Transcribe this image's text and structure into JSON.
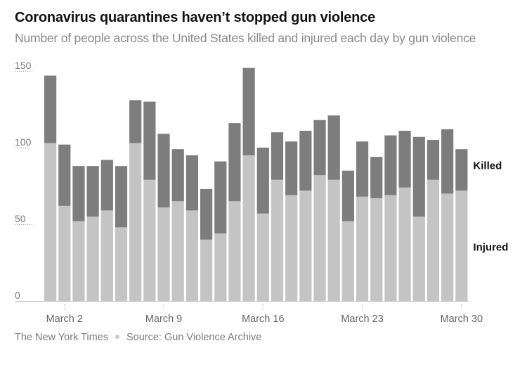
{
  "title": "Coronavirus quarantines haven’t stopped gun violence",
  "subtitle": "Number of people across the United States killed and injured each day by gun violence",
  "footer": {
    "publisher": "The New York Times",
    "source": "Source: Gun Violence Archive"
  },
  "colors": {
    "injured": "#c4c4c4",
    "killed": "#7d7d7d",
    "text": "#121212",
    "muted": "#8a8a8a"
  },
  "chart_data": {
    "type": "bar",
    "stacked": true,
    "categories": [
      "Mar 1",
      "Mar 2",
      "Mar 3",
      "Mar 4",
      "Mar 5",
      "Mar 6",
      "Mar 7",
      "Mar 8",
      "Mar 9",
      "Mar 10",
      "Mar 11",
      "Mar 12",
      "Mar 13",
      "Mar 14",
      "Mar 15",
      "Mar 16",
      "Mar 17",
      "Mar 18",
      "Mar 19",
      "Mar 20",
      "Mar 21",
      "Mar 22",
      "Mar 23",
      "Mar 24",
      "Mar 25",
      "Mar 26",
      "Mar 27",
      "Mar 28",
      "Mar 29",
      "Mar 30"
    ],
    "series": [
      {
        "name": "Injured",
        "values": [
          103,
          62,
          52,
          55,
          59,
          48,
          103,
          79,
          61,
          65,
          59,
          40,
          44,
          65,
          95,
          57,
          79,
          69,
          72,
          82,
          79,
          52,
          68,
          67,
          69,
          74,
          55,
          79,
          70,
          72
        ]
      },
      {
        "name": "Killed",
        "values": [
          44,
          40,
          36,
          33,
          33,
          40,
          28,
          51,
          48,
          34,
          36,
          33,
          47,
          51,
          57,
          43,
          31,
          35,
          39,
          36,
          42,
          33,
          36,
          27,
          39,
          37,
          52,
          26,
          42,
          27
        ]
      }
    ],
    "x_ticks": [
      {
        "index": 1,
        "label": "March 2"
      },
      {
        "index": 8,
        "label": "March 9"
      },
      {
        "index": 15,
        "label": "March 16"
      },
      {
        "index": 22,
        "label": "March 23"
      },
      {
        "index": 29,
        "label": "March 30"
      }
    ],
    "y_ticks": [
      0,
      50,
      100,
      150
    ],
    "ylim": [
      0,
      150
    ],
    "annotations": [
      "Killed",
      "Injured"
    ]
  }
}
